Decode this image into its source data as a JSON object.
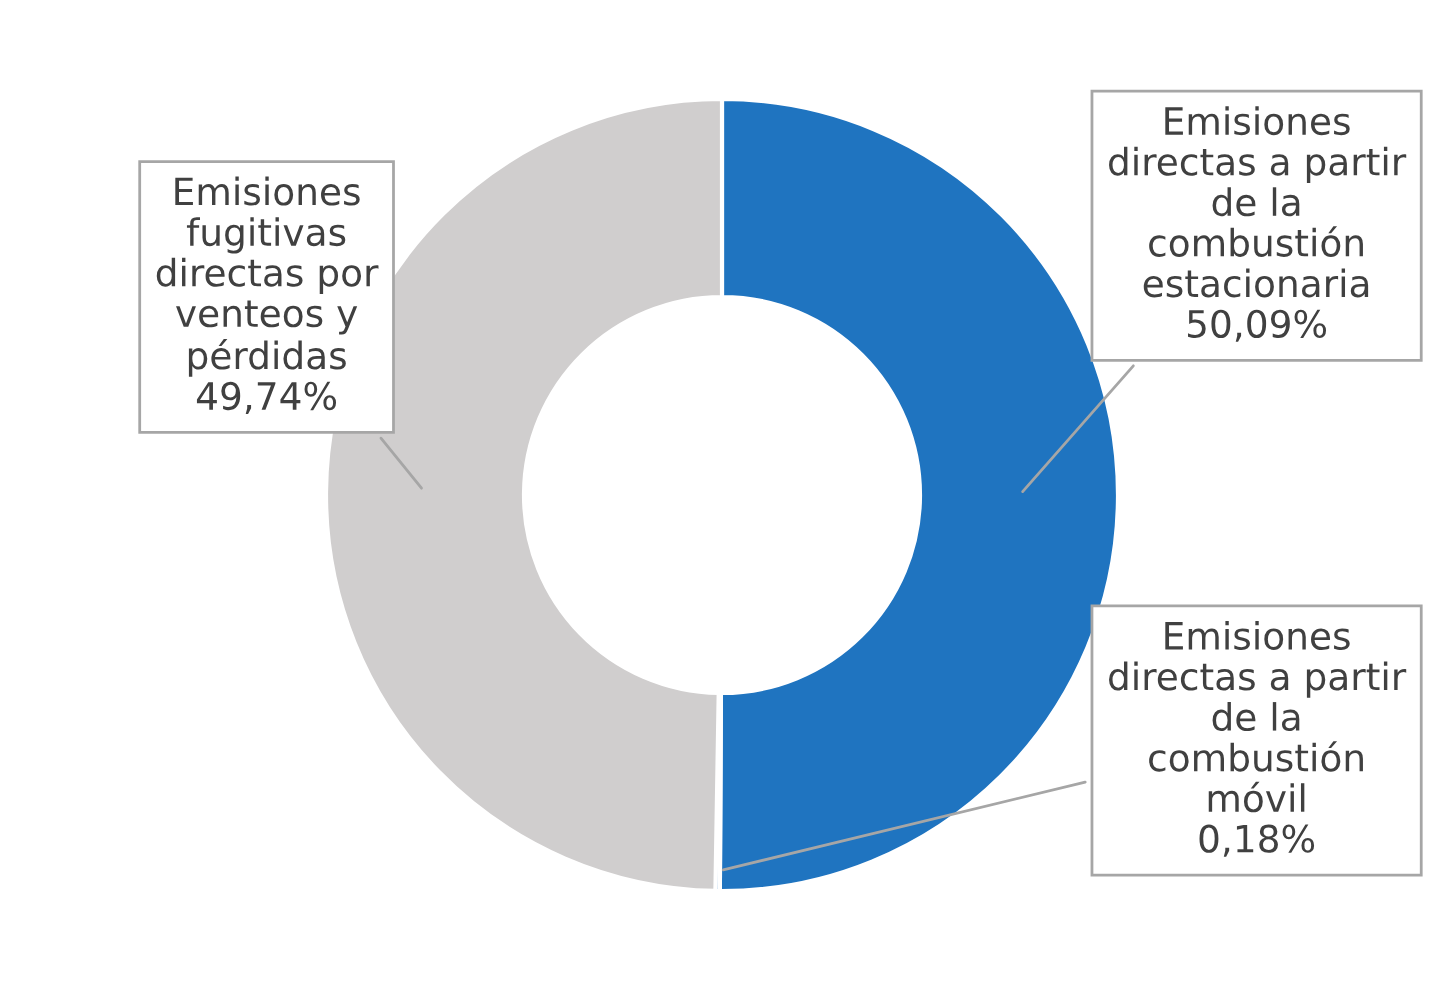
{
  "chart_data": {
    "type": "donut",
    "categories": [
      "Emisiones\ndirectas a partir\nde la\ncombustión\nestacionaria",
      "Emisiones\ndirectas a partir\nde la\ncombustión\nmóvil",
      "Emisiones\nfugitivas\ndirectas por\nventeos y\npérdidas"
    ],
    "values": [
      50.09,
      0.18,
      49.74
    ],
    "colors": [
      "#1f74c0",
      "#1f74c0",
      "#d0cece"
    ],
    "value_labels": [
      "50,09%",
      "0,18%",
      "49,74%"
    ]
  }
}
